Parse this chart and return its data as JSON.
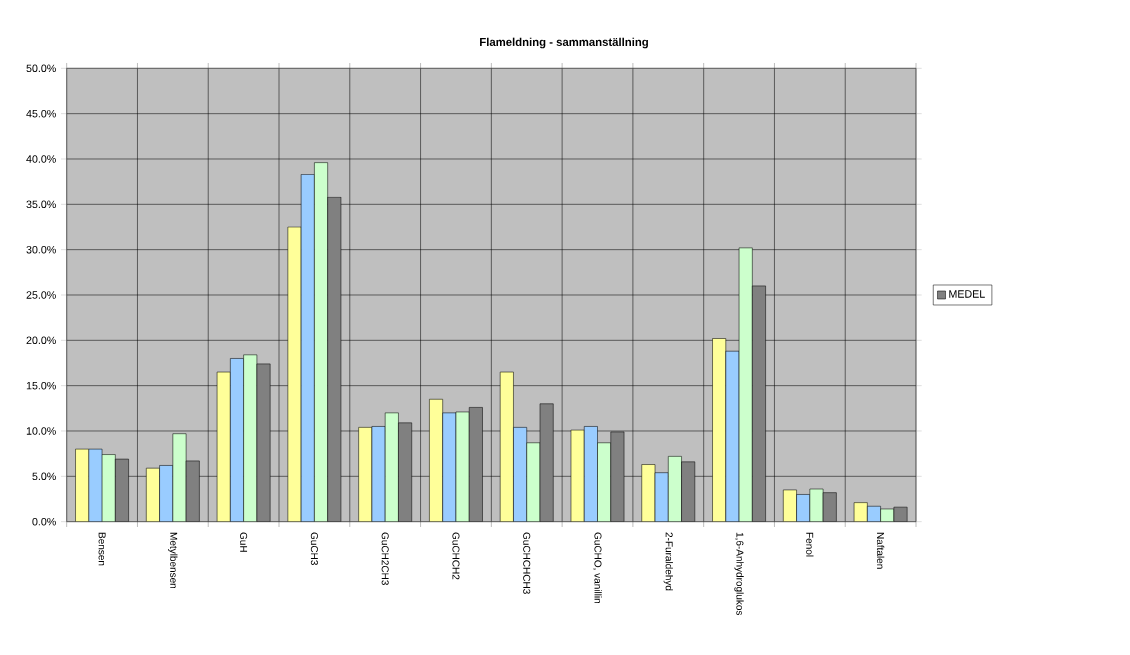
{
  "chart_data": {
    "type": "bar",
    "title": "Flameldning - sammanställning",
    "categories": [
      "Bensen",
      "Metylbensen",
      "GuH",
      "GuCH3",
      "GuCH2CH3",
      "GuCHCH2",
      "GuCHCHCH3",
      "GuCHO, vanillin",
      "2-Furaldehyd",
      "1,6-Anhydroglukos",
      "Fenol",
      "Naftalen"
    ],
    "series": [
      {
        "color": "#ffff99",
        "values": [
          8.0,
          5.9,
          16.5,
          32.5,
          10.4,
          13.5,
          16.5,
          10.1,
          6.3,
          20.2,
          3.5,
          2.1
        ]
      },
      {
        "color": "#99ccff",
        "values": [
          8.0,
          6.2,
          18.0,
          38.3,
          10.5,
          12.0,
          10.4,
          10.5,
          5.4,
          18.8,
          3.0,
          1.7
        ]
      },
      {
        "color": "#ccffcc",
        "values": [
          7.4,
          9.7,
          18.4,
          39.6,
          12.0,
          12.1,
          8.7,
          8.7,
          7.2,
          30.2,
          3.6,
          1.4
        ]
      },
      {
        "name": "MEDEL",
        "color": "#808080",
        "values": [
          6.9,
          6.7,
          17.4,
          35.8,
          10.9,
          12.6,
          13.0,
          9.9,
          6.6,
          26.0,
          3.2,
          1.6
        ]
      }
    ],
    "ylim": [
      0,
      50
    ],
    "yticks": [
      {
        "value": 0,
        "label": "0.0%"
      },
      {
        "value": 5,
        "label": "5.0%"
      },
      {
        "value": 10,
        "label": "10.0%"
      },
      {
        "value": 15,
        "label": "15.0%"
      },
      {
        "value": 20,
        "label": "20.0%"
      },
      {
        "value": 25,
        "label": "25.0%"
      },
      {
        "value": 30,
        "label": "30.0%"
      },
      {
        "value": 35,
        "label": "35.0%"
      },
      {
        "value": 40,
        "label": "40.0%"
      },
      {
        "value": 45,
        "label": "45.0%"
      },
      {
        "value": 50,
        "label": "50.0%"
      }
    ],
    "grid": true,
    "legend": "right"
  }
}
